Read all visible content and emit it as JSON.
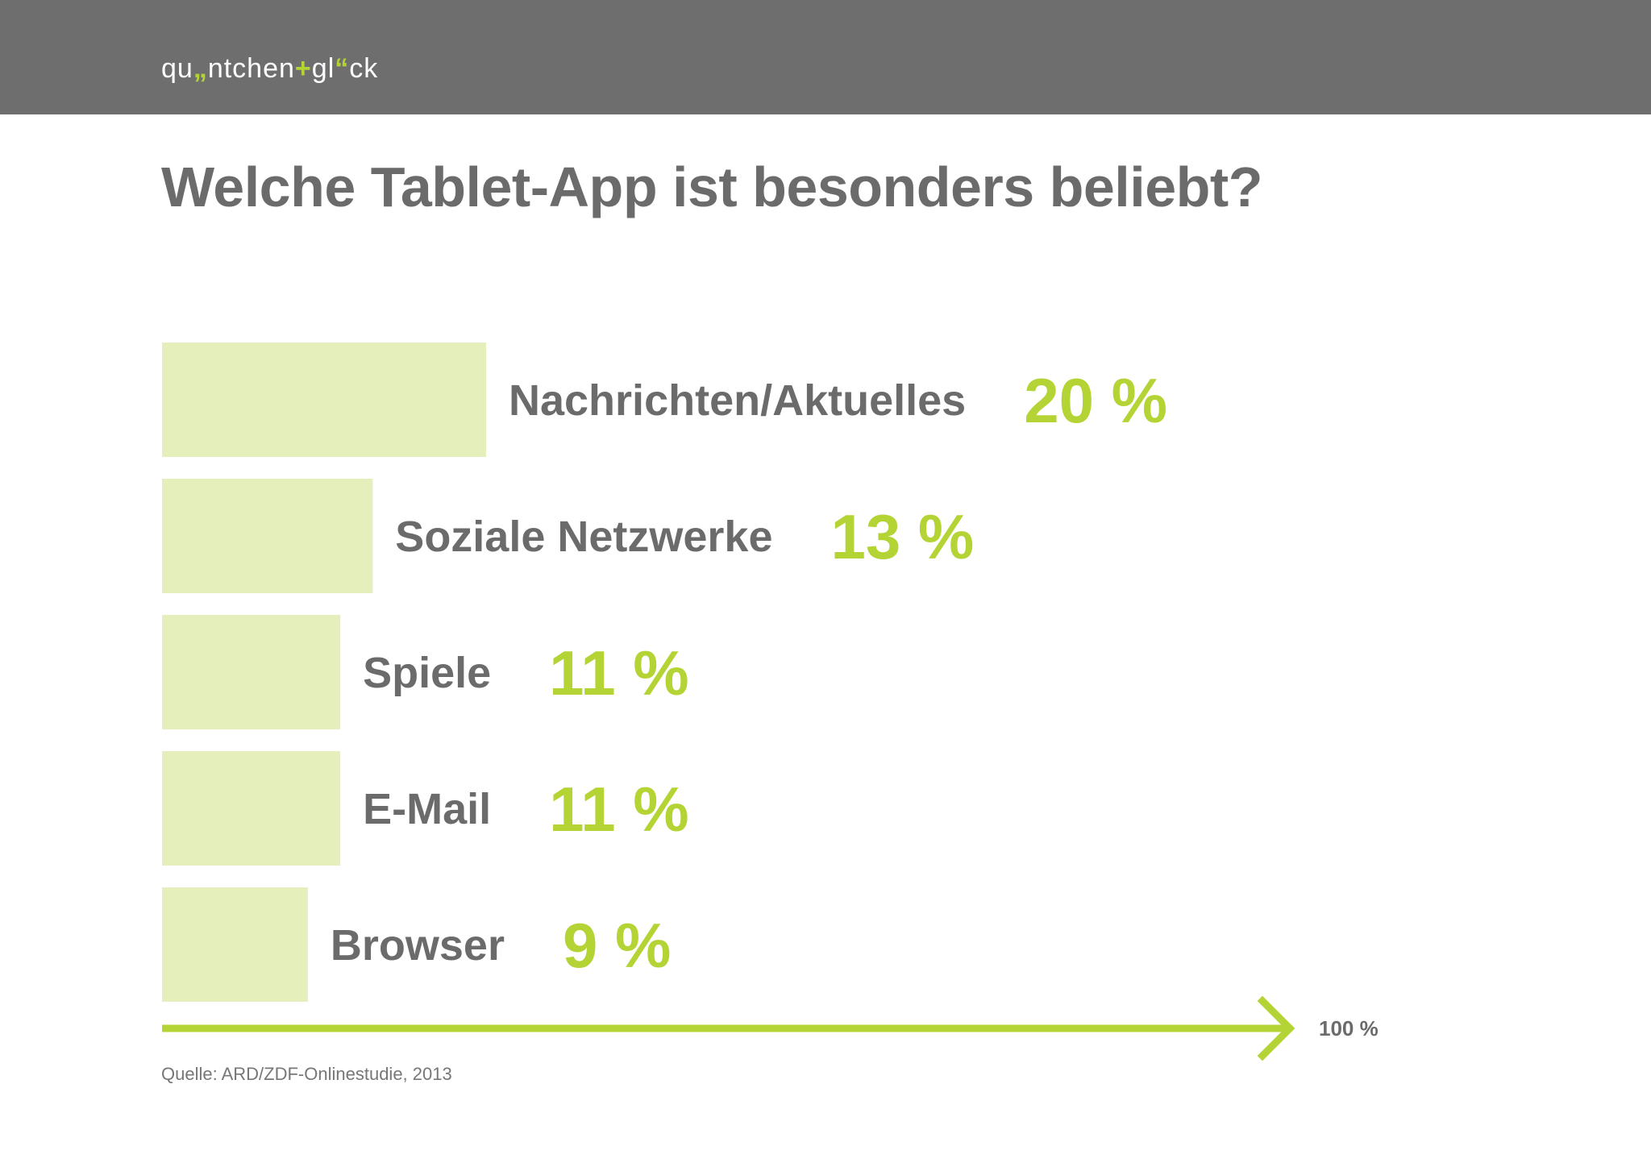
{
  "header": {
    "logo_parts": {
      "a": "qu",
      "b": "„",
      "c": "ntchen",
      "d": "+",
      "e": "gl",
      "f": "“",
      "g": "ck"
    }
  },
  "title": "Welche Tablet-App ist besonders beliebt?",
  "source": "Quelle: ARD/ZDF-Onlinestudie, 2013",
  "colors": {
    "accent": "#b4d334",
    "bar_fill": "#e5efbc",
    "text_gray": "#6b6b6b",
    "header_bg": "#6e6e6e"
  },
  "chart_data": {
    "type": "bar",
    "orientation": "horizontal",
    "categories": [
      "Nachrichten/Aktuelles",
      "Soziale Netzwerke",
      "Spiele",
      "E-Mail",
      "Browser"
    ],
    "values": [
      20,
      13,
      11,
      11,
      9
    ],
    "value_labels": [
      "20 %",
      "13 %",
      "11 %",
      "11 %",
      "9 %"
    ],
    "xlim": [
      0,
      100
    ],
    "axis_end_label": "100 %",
    "title": "Welche Tablet-App ist besonders beliebt?",
    "grid": false,
    "legend": "none"
  }
}
